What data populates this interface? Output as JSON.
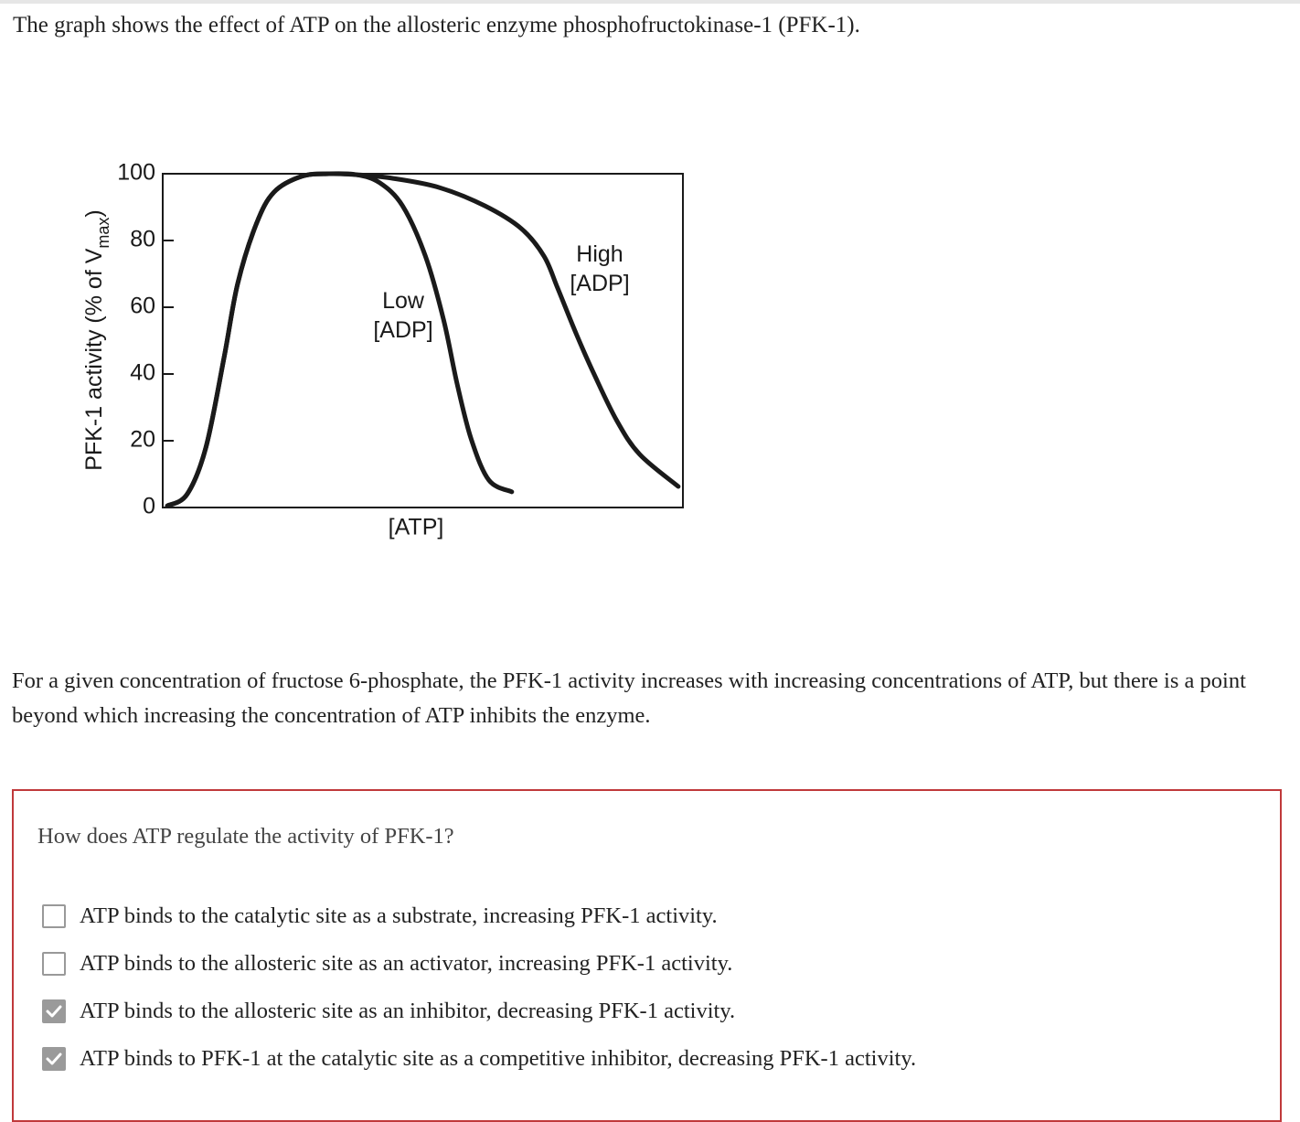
{
  "prompt": "The graph shows the effect of ATP on the allosteric enzyme phosphofructokinase-1 (PFK-1).",
  "chart_data": {
    "type": "line",
    "ylabel": "PFK-1 activity (% of V",
    "ylabel_sub": "max",
    "ylabel_end": ")",
    "xlabel": "[ATP]",
    "ylim": [
      0,
      100
    ],
    "yticks": [
      0,
      20,
      40,
      60,
      80,
      100
    ],
    "xlim": [
      0,
      100
    ],
    "series": [
      {
        "label_lines": [
          "Low",
          "[ADP]"
        ],
        "color": "#1a1a1a",
        "x": [
          0.9,
          4.7,
          8.3,
          11.8,
          14.4,
          18,
          21.4,
          26.7,
          32,
          37.3,
          41.7,
          46.1,
          50.5,
          54,
          56.6,
          59.3,
          62.7,
          67.1
        ],
        "values": [
          0.5,
          4,
          18,
          45,
          67,
          85,
          94.5,
          99.2,
          100,
          99.7,
          97.3,
          90.4,
          75.3,
          56.2,
          37,
          20.5,
          8.2,
          4.7
        ]
      },
      {
        "label_lines": [
          "High",
          "[ADP]"
        ],
        "color": "#1a1a1a",
        "x": [
          0.9,
          4.7,
          8.3,
          11.8,
          14.4,
          18,
          21.4,
          26.7,
          32,
          37.3,
          44.3,
          53.1,
          61.9,
          68.9,
          73.3,
          75.9,
          79.5,
          83,
          87.3,
          91.7,
          99.1
        ],
        "values": [
          0.5,
          4,
          18,
          45,
          67,
          85,
          94.5,
          99.2,
          100,
          99.7,
          98.6,
          95.9,
          90.4,
          83.6,
          75.3,
          65.8,
          52,
          39.7,
          26,
          15.9,
          6.3
        ]
      }
    ]
  },
  "paragraph": "For a given concentration of fructose 6-phosphate, the PFK-1 activity increases with increasing concentrations of ATP, but there is a point beyond which increasing the concentration of ATP inhibits the enzyme.",
  "question": {
    "text": "How does ATP regulate the activity of PFK-1?",
    "options": [
      {
        "text": "ATP binds to the catalytic site as a substrate, increasing PFK-1 activity.",
        "checked": false
      },
      {
        "text": "ATP binds to the allosteric site as an activator, increasing PFK-1 activity.",
        "checked": false
      },
      {
        "text": "ATP binds to the allosteric site as an inhibitor, decreasing PFK-1 activity.",
        "checked": true
      },
      {
        "text": "ATP binds to PFK-1 at the catalytic site as a competitive inhibitor, decreasing PFK-1 activity.",
        "checked": true
      }
    ]
  }
}
